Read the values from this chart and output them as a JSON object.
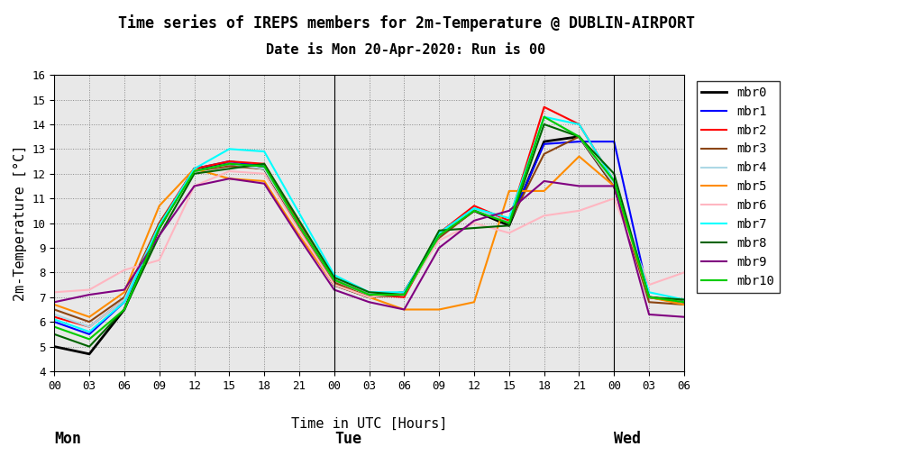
{
  "title_line1": "Time series of IREPS members for 2m-Temperature @ DUBLIN-AIRPORT",
  "title_line2": "Date is Mon 20-Apr-2020: Run is 00",
  "xlabel": "Time in UTC [Hours]",
  "ylabel": "2m-Temperature [°C]",
  "ylim": [
    4,
    16
  ],
  "yticks": [
    4,
    5,
    6,
    7,
    8,
    9,
    10,
    11,
    12,
    13,
    14,
    15,
    16
  ],
  "members": [
    "mbr0",
    "mbr1",
    "mbr2",
    "mbr3",
    "mbr4",
    "mbr5",
    "mbr6",
    "mbr7",
    "mbr8",
    "mbr9",
    "mbr10"
  ],
  "colors": [
    "#000000",
    "#0000ff",
    "#ff0000",
    "#8B4513",
    "#add8e6",
    "#ff8c00",
    "#ffb6c1",
    "#00ffff",
    "#006400",
    "#800080",
    "#00cc00"
  ],
  "linewidths": [
    2.0,
    1.5,
    1.5,
    1.5,
    1.5,
    1.5,
    1.5,
    1.5,
    1.5,
    1.5,
    1.5
  ],
  "day_labels": [
    [
      "Mon",
      0
    ],
    [
      "Tue",
      24
    ],
    [
      "Wed",
      48
    ]
  ],
  "hour_ticks": [
    0,
    3,
    6,
    9,
    12,
    15,
    18,
    21,
    24,
    27,
    30,
    33,
    36,
    39,
    42,
    45,
    48,
    51,
    54
  ],
  "hour_tick_labels": [
    "00",
    "03",
    "06",
    "09",
    "12",
    "15",
    "18",
    "21",
    "00",
    "03",
    "06",
    "09",
    "12",
    "15",
    "18",
    "21",
    "00",
    "03",
    "06"
  ],
  "member_data": {
    "mbr0": [
      5.0,
      4.7,
      6.5,
      9.8,
      12.2,
      12.4,
      12.2,
      9.8,
      7.5,
      7.0,
      7.2,
      9.5,
      10.5,
      9.9,
      13.3,
      13.5,
      11.5,
      7.0,
      6.8
    ],
    "mbr1": [
      6.0,
      5.5,
      6.8,
      9.9,
      12.2,
      12.5,
      12.3,
      9.9,
      7.7,
      7.1,
      7.1,
      9.6,
      10.6,
      10.0,
      13.2,
      13.3,
      13.3,
      7.0,
      6.8
    ],
    "mbr2": [
      6.2,
      5.8,
      6.9,
      10.0,
      12.2,
      12.5,
      12.4,
      10.0,
      7.7,
      7.1,
      7.0,
      9.6,
      10.7,
      10.1,
      14.7,
      14.0,
      11.7,
      7.0,
      6.8
    ],
    "mbr3": [
      6.5,
      6.0,
      7.0,
      10.0,
      12.1,
      12.3,
      12.2,
      9.8,
      7.6,
      7.0,
      7.1,
      9.4,
      10.5,
      10.0,
      12.8,
      13.5,
      11.5,
      6.8,
      6.7
    ],
    "mbr4": [
      6.3,
      5.8,
      6.9,
      9.9,
      12.1,
      12.4,
      12.2,
      9.9,
      7.7,
      7.1,
      7.1,
      9.5,
      10.6,
      10.0,
      14.3,
      13.5,
      11.6,
      7.0,
      6.8
    ],
    "mbr5": [
      6.7,
      6.2,
      7.2,
      10.7,
      12.2,
      11.8,
      11.7,
      9.5,
      7.5,
      7.0,
      6.5,
      6.5,
      6.8,
      11.3,
      11.3,
      12.7,
      11.5,
      7.0,
      6.7
    ],
    "mbr6": [
      7.2,
      7.3,
      8.1,
      8.5,
      11.5,
      12.1,
      12.0,
      9.7,
      7.5,
      7.0,
      7.2,
      9.3,
      10.0,
      9.6,
      10.3,
      10.5,
      11.0,
      7.5,
      8.0
    ],
    "mbr7": [
      6.1,
      5.6,
      6.8,
      9.9,
      12.2,
      13.0,
      12.9,
      10.4,
      7.9,
      7.2,
      7.2,
      9.6,
      10.6,
      10.2,
      14.3,
      14.0,
      11.7,
      7.2,
      6.9
    ],
    "mbr8": [
      5.5,
      5.0,
      6.5,
      9.5,
      12.0,
      12.2,
      12.4,
      10.1,
      7.8,
      7.2,
      7.1,
      9.7,
      9.8,
      9.9,
      14.0,
      13.5,
      12.0,
      7.0,
      6.9
    ],
    "mbr9": [
      6.8,
      7.1,
      7.3,
      9.5,
      11.5,
      11.8,
      11.6,
      9.4,
      7.3,
      6.8,
      6.5,
      9.0,
      10.1,
      10.5,
      11.7,
      11.5,
      11.5,
      6.3,
      6.2
    ],
    "mbr10": [
      5.8,
      5.3,
      6.5,
      9.8,
      12.1,
      12.4,
      12.3,
      9.9,
      7.7,
      7.1,
      7.1,
      9.5,
      10.5,
      10.0,
      14.3,
      13.5,
      11.7,
      7.0,
      6.8
    ]
  },
  "background_color": "#e8e8e8",
  "grid_color": "#888888",
  "fig_bg": "#ffffff"
}
